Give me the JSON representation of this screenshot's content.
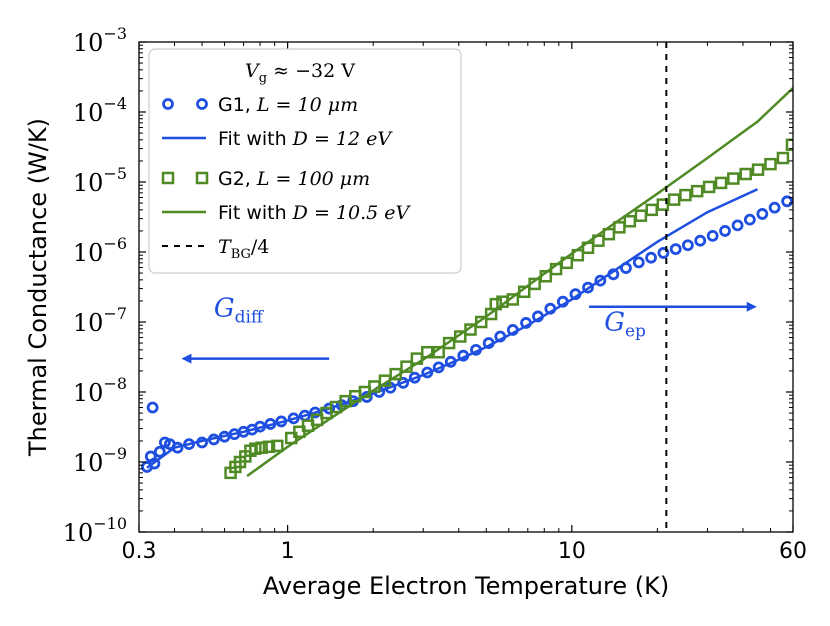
{
  "colors": {
    "g1": "#1f4fe0",
    "g2": "#4f8a24",
    "frame": "#000000"
  },
  "chart_data": {
    "type": "scatter",
    "xlabel": "Average Electron Temperature (K)",
    "ylabel": "Thermal Conductance (W/K)",
    "xscale": "log",
    "yscale": "log",
    "xlim": [
      0.3,
      60
    ],
    "ylim": [
      1e-10,
      0.001
    ],
    "xticks": [
      {
        "value": 0.3,
        "label": "0.3"
      },
      {
        "value": 1,
        "label": "1"
      },
      {
        "value": 10,
        "label": "10"
      },
      {
        "value": 60,
        "label": "60"
      }
    ],
    "yticks": [
      {
        "value": 1e-10,
        "base": "10",
        "exp": "−10"
      },
      {
        "value": 1e-09,
        "base": "10",
        "exp": "−9"
      },
      {
        "value": 1e-08,
        "base": "10",
        "exp": "−8"
      },
      {
        "value": 1e-07,
        "base": "10",
        "exp": "−7"
      },
      {
        "value": 1e-06,
        "base": "10",
        "exp": "−6"
      },
      {
        "value": 1e-05,
        "base": "10",
        "exp": "−5"
      },
      {
        "value": 0.0001,
        "base": "10",
        "exp": "−4"
      },
      {
        "value": 0.001,
        "base": "10",
        "exp": "−3"
      }
    ],
    "legend": {
      "title": "V_g ≈ −32 V",
      "title_parts": {
        "var": "V",
        "sub": "g",
        "rest": " ≈ −32 V"
      },
      "entries": [
        {
          "series": "G1",
          "text": "G1, ",
          "math": "L = 10 μm"
        },
        {
          "series": "G1 fit",
          "text": "Fit with ",
          "math": "D = 12 eV"
        },
        {
          "series": "G2",
          "text": "G2, ",
          "math": "L = 100 μm"
        },
        {
          "series": "G2 fit",
          "text": "Fit with ",
          "math": "D = 10.5 eV"
        },
        {
          "series": "T_BG/4",
          "text": "",
          "math": "T",
          "sub": "BG",
          "after": "/4"
        }
      ]
    },
    "series": [
      {
        "name": "G1, L = 10 μm",
        "kind": "scatter",
        "marker": "circle",
        "color": "#1f4fe0",
        "points": [
          [
            0.32,
            8.5e-10
          ],
          [
            0.33,
            1.2e-09
          ],
          [
            0.335,
            6e-09
          ],
          [
            0.34,
            9.5e-10
          ],
          [
            0.355,
            1.4e-09
          ],
          [
            0.37,
            1.9e-09
          ],
          [
            0.385,
            1.8e-09
          ],
          [
            0.41,
            1.6e-09
          ],
          [
            0.45,
            1.8e-09
          ],
          [
            0.5,
            1.9e-09
          ],
          [
            0.55,
            2.1e-09
          ],
          [
            0.6,
            2.3e-09
          ],
          [
            0.65,
            2.5e-09
          ],
          [
            0.7,
            2.7e-09
          ],
          [
            0.75,
            2.9e-09
          ],
          [
            0.8,
            3.2e-09
          ],
          [
            0.87,
            3.5e-09
          ],
          [
            0.95,
            3.8e-09
          ],
          [
            1.05,
            4.2e-09
          ],
          [
            1.15,
            4.6e-09
          ],
          [
            1.25,
            5.1e-09
          ],
          [
            1.4,
            5.8e-09
          ],
          [
            1.55,
            6.5e-09
          ],
          [
            1.7,
            7.4e-09
          ],
          [
            1.9,
            8.5e-09
          ],
          [
            2.1,
            1e-08
          ],
          [
            2.3,
            1.15e-08
          ],
          [
            2.55,
            1.35e-08
          ],
          [
            2.8,
            1.6e-08
          ],
          [
            3.1,
            1.9e-08
          ],
          [
            3.4,
            2.25e-08
          ],
          [
            3.75,
            2.7e-08
          ],
          [
            4.15,
            3.3e-08
          ],
          [
            4.6,
            4e-08
          ],
          [
            5.1,
            5e-08
          ],
          [
            5.6,
            6.2e-08
          ],
          [
            6.2,
            7.7e-08
          ],
          [
            6.9,
            9.7e-08
          ],
          [
            7.6,
            1.2e-07
          ],
          [
            8.4,
            1.55e-07
          ],
          [
            9.3,
            1.95e-07
          ],
          [
            10.3,
            2.5e-07
          ],
          [
            11.4,
            3.1e-07
          ],
          [
            12.6,
            3.9e-07
          ],
          [
            14,
            4.8e-07
          ],
          [
            15.5,
            5.9e-07
          ],
          [
            17.2,
            7.1e-07
          ],
          [
            19,
            8.3e-07
          ],
          [
            21,
            9.7e-07
          ],
          [
            23.2,
            1.1e-06
          ],
          [
            25.6,
            1.25e-06
          ],
          [
            28.3,
            1.45e-06
          ],
          [
            31.3,
            1.7e-06
          ],
          [
            34.6,
            2e-06
          ],
          [
            38.3,
            2.4e-06
          ],
          [
            42.3,
            2.9e-06
          ],
          [
            46.8,
            3.5e-06
          ],
          [
            51.7,
            4.3e-06
          ],
          [
            57.2,
            5.3e-06
          ]
        ]
      },
      {
        "name": "Fit with D = 12 eV",
        "kind": "line",
        "color": "#1f4fe0",
        "points": [
          [
            0.32,
            8.3e-10
          ],
          [
            0.4,
            1.6e-09
          ],
          [
            0.5,
            2e-09
          ],
          [
            0.7,
            2.7e-09
          ],
          [
            1,
            3.9e-09
          ],
          [
            1.4,
            5.8e-09
          ],
          [
            2,
            9.5e-09
          ],
          [
            3,
            1.75e-08
          ],
          [
            4,
            2.9e-08
          ],
          [
            5,
            4.4e-08
          ],
          [
            7,
            9e-08
          ],
          [
            10,
            2.1e-07
          ],
          [
            14,
            5.3e-07
          ],
          [
            20,
            1.4e-06
          ],
          [
            30,
            3.7e-06
          ],
          [
            45,
            7.9e-06
          ]
        ]
      },
      {
        "name": "G2, L = 100 μm",
        "kind": "scatter",
        "marker": "square",
        "color": "#4f8a24",
        "points": [
          [
            0.63,
            7e-10
          ],
          [
            0.655,
            8.5e-10
          ],
          [
            0.68,
            1e-09
          ],
          [
            0.71,
            1.2e-09
          ],
          [
            0.74,
            1.45e-09
          ],
          [
            0.77,
            1.55e-09
          ],
          [
            0.81,
            1.6e-09
          ],
          [
            0.86,
            1.65e-09
          ],
          [
            0.92,
            1.7e-09
          ],
          [
            1.03,
            2.2e-09
          ],
          [
            1.1,
            2.7e-09
          ],
          [
            1.18,
            3.3e-09
          ],
          [
            1.27,
            4e-09
          ],
          [
            1.37,
            5e-09
          ],
          [
            1.48,
            6.1e-09
          ],
          [
            1.6,
            7.4e-09
          ],
          [
            1.73,
            8.7e-09
          ],
          [
            1.87,
            1e-08
          ],
          [
            2.02,
            1.2e-08
          ],
          [
            2.2,
            1.45e-08
          ],
          [
            2.4,
            1.8e-08
          ],
          [
            2.62,
            2.3e-08
          ],
          [
            2.85,
            3e-08
          ],
          [
            3.1,
            3.7e-08
          ],
          [
            3.4,
            3.7e-08
          ],
          [
            3.7,
            5e-08
          ],
          [
            4.05,
            6.2e-08
          ],
          [
            4.4,
            7.8e-08
          ],
          [
            4.8,
            1e-07
          ],
          [
            5.2,
            1.3e-07
          ],
          [
            5.4,
            1.8e-07
          ],
          [
            5.7,
            1.95e-07
          ],
          [
            6.2,
            2.1e-07
          ],
          [
            6.8,
            2.7e-07
          ],
          [
            7.4,
            3.5e-07
          ],
          [
            8.1,
            4.5e-07
          ],
          [
            8.8,
            5.7e-07
          ],
          [
            9.6,
            7e-07
          ],
          [
            10.5,
            9e-07
          ],
          [
            11.4,
            1.15e-06
          ],
          [
            12.4,
            1.45e-06
          ],
          [
            13.5,
            1.8e-06
          ],
          [
            14.7,
            2.25e-06
          ],
          [
            16,
            2.75e-06
          ],
          [
            17.5,
            3.3e-06
          ],
          [
            19.1,
            4e-06
          ],
          [
            20.9,
            4.75e-06
          ],
          [
            22.9,
            5.6e-06
          ],
          [
            25.1,
            6.5e-06
          ],
          [
            27.6,
            7.4e-06
          ],
          [
            30.4,
            8.5e-06
          ],
          [
            33.5,
            9.7e-06
          ],
          [
            37,
            1.12e-05
          ],
          [
            40.9,
            1.3e-05
          ],
          [
            45.2,
            1.5e-05
          ],
          [
            50,
            1.8e-05
          ],
          [
            55.3,
            2.2e-05
          ],
          [
            59.5,
            3.4e-05
          ]
        ]
      },
      {
        "name": "Fit with D = 10.5 eV",
        "kind": "line",
        "color": "#4f8a24",
        "points": [
          [
            0.72,
            6.3e-10
          ],
          [
            1,
            1.65e-09
          ],
          [
            1.5,
            4.9e-09
          ],
          [
            2,
            1.05e-08
          ],
          [
            3,
            2.9e-08
          ],
          [
            5,
            1.2e-07
          ],
          [
            7,
            3.3e-07
          ],
          [
            10,
            9.5e-07
          ],
          [
            14,
            2.5e-06
          ],
          [
            20,
            6.8e-06
          ],
          [
            30,
            2.2e-05
          ],
          [
            45,
            7.3e-05
          ],
          [
            60,
            0.00022
          ]
        ]
      },
      {
        "name": "T_BG/4",
        "kind": "vline",
        "style": "dashed",
        "color": "#000000",
        "x": 21.5
      }
    ],
    "annotations": [
      {
        "id": "diff",
        "var": "G",
        "sub": "diff",
        "color": "#1f4fe0",
        "arrow": "left",
        "x_from": 1.4,
        "x_to": 0.43,
        "y": 3e-08,
        "label_x": 0.55,
        "label_y": 1.2e-07
      },
      {
        "id": "ep",
        "var": "G",
        "sub": "ep",
        "color": "#1f4fe0",
        "arrow": "right",
        "x_from": 11.5,
        "x_to": 44,
        "y": 1.65e-07,
        "label_x": 13,
        "label_y": 7.5e-08
      }
    ],
    "grid": false
  }
}
